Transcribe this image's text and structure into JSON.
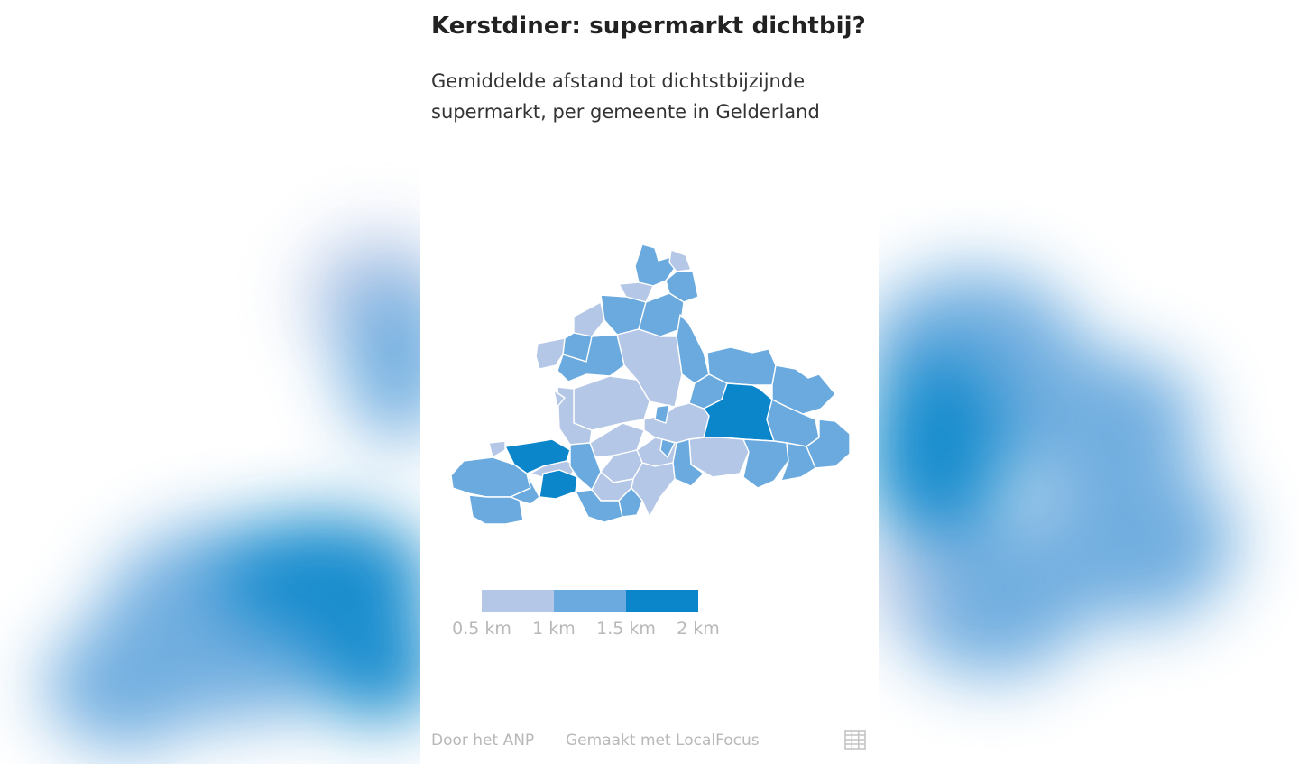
{
  "header": {
    "title": "Kerstdiner: supermarkt dichtbij?",
    "subtitle": "Gemiddelde afstand tot dichtstbijzijnde supermarkt, per gemeente in Gelderland"
  },
  "colors": {
    "class_low": "#b5c7e6",
    "class_mid": "#6aaade",
    "class_high": "#0b86cb",
    "border": "#ffffff",
    "muted_text": "#b8b8b8",
    "title_text": "#222222"
  },
  "legend": {
    "ticks": [
      "0.5 km",
      "1 km",
      "1.5 km",
      "2 km"
    ],
    "classes": [
      "0.5–1 km",
      "1–1.5 km",
      "1.5–2 km"
    ]
  },
  "footer": {
    "source": "Door het ANP",
    "made_with": "Gemaakt met LocalFocus",
    "table_icon": "table-grid-icon"
  },
  "map_data": {
    "region": "Gelderland",
    "unit": "km",
    "classes_counted": {
      "0.5-1": 24,
      "1-1.5": 23,
      "1.5-2": 3
    }
  }
}
